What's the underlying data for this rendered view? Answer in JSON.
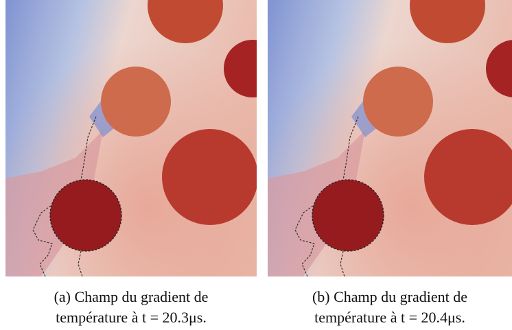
{
  "figure": {
    "subfigures": [
      {
        "caption": [
          "(a) Champ du gradient de",
          "température à t = 20.3μs."
        ]
      },
      {
        "caption": [
          "(b) Champ du gradient de",
          "température à t = 20.4μs."
        ]
      }
    ]
  }
}
